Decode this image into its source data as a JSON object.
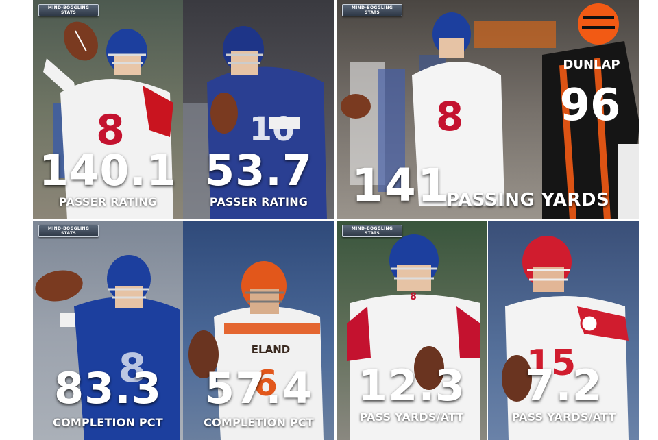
{
  "badge": {
    "line1": "MIND-BOGGLING",
    "line2": "STATS"
  },
  "panels": {
    "p1": {
      "value": "140.1",
      "label": "PASSER RATING",
      "jersey": "8"
    },
    "p2": {
      "value": "53.7",
      "label": "PASSER RATING",
      "jersey": "10"
    },
    "p3": {
      "value": "141",
      "label": "PASSING YARDS",
      "jersey": "8",
      "opponent_name": "DUNLAP",
      "opponent_jersey": "96"
    },
    "p4": {
      "value": "83.3",
      "label": "COMPLETION PCT",
      "jersey": "8"
    },
    "p5": {
      "value": "57.4",
      "label": "COMPLETION PCT",
      "jersey": "6",
      "jersey_text": "ELAND"
    },
    "p6": {
      "value": "12.3",
      "label": "PASS YARDS/ATT",
      "jersey": "8"
    },
    "p7": {
      "value": "7.2",
      "label": "PASS YARDS/ATT",
      "jersey": "15"
    }
  },
  "colors": {
    "giants_blue": "#1c3f9e",
    "giants_red": "#c4122f",
    "browns_orange": "#e2571b",
    "chiefs_red": "#d01c2e",
    "bengals_orange": "#f25a14"
  }
}
